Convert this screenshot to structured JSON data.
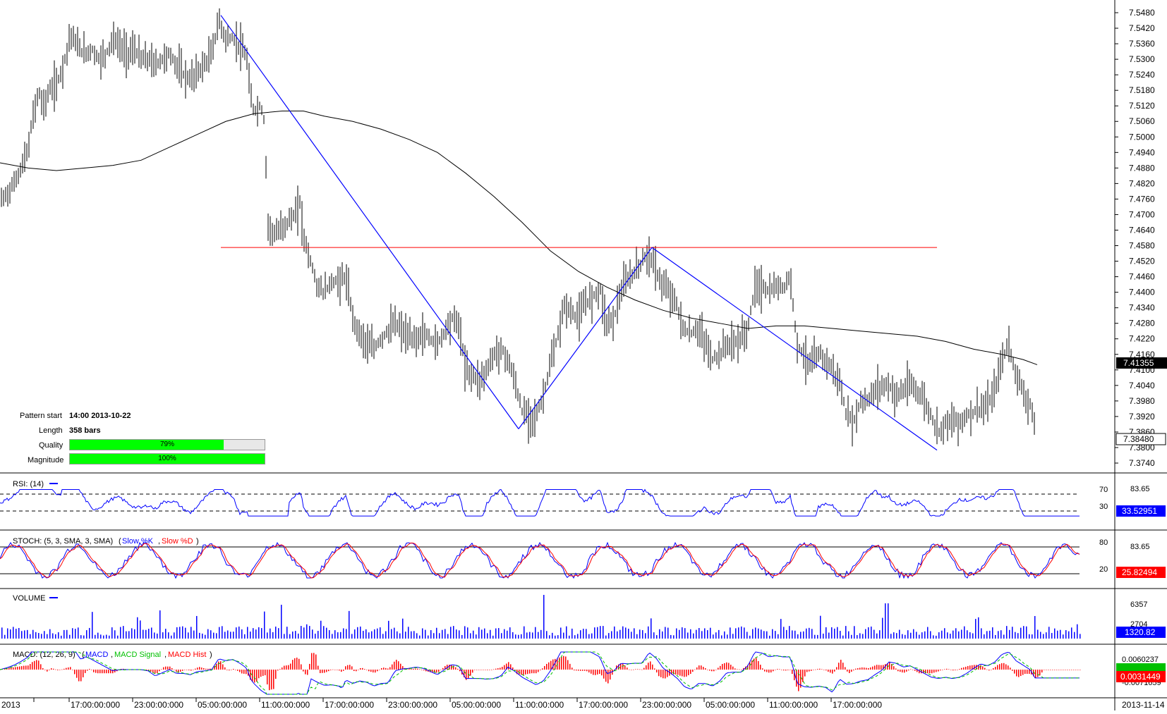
{
  "chart_data": [
    {
      "type": "candlestick",
      "panel": "price",
      "yaxis_ticks": [
        "7.5480",
        "7.5420",
        "7.5360",
        "7.5300",
        "7.5240",
        "7.5180",
        "7.5120",
        "7.5060",
        "7.5000",
        "7.4940",
        "7.4880",
        "7.4820",
        "7.4760",
        "7.4700",
        "7.4640",
        "7.4580",
        "7.4520",
        "7.4460",
        "7.4400",
        "7.4340",
        "7.4280",
        "7.4220",
        "7.4160",
        "7.4100",
        "7.4040",
        "7.3980",
        "7.3920",
        "7.3860",
        "7.3800",
        "7.3740"
      ],
      "ylim": [
        7.372,
        7.55
      ],
      "current_price_label": "7.41355",
      "alt_price_label": "7.38480",
      "close_path": [
        [
          0,
          7.475
        ],
        [
          10,
          7.478
        ],
        [
          20,
          7.482
        ],
        [
          30,
          7.488
        ],
        [
          40,
          7.495
        ],
        [
          45,
          7.505
        ],
        [
          50,
          7.512
        ],
        [
          55,
          7.518
        ],
        [
          60,
          7.512
        ],
        [
          65,
          7.514
        ],
        [
          70,
          7.518
        ],
        [
          80,
          7.52
        ],
        [
          90,
          7.528
        ],
        [
          100,
          7.54
        ],
        [
          110,
          7.535
        ],
        [
          120,
          7.532
        ],
        [
          130,
          7.534
        ],
        [
          140,
          7.53
        ],
        [
          150,
          7.532
        ],
        [
          160,
          7.538
        ],
        [
          170,
          7.535
        ],
        [
          180,
          7.532
        ],
        [
          190,
          7.534
        ],
        [
          200,
          7.53
        ],
        [
          210,
          7.53
        ],
        [
          220,
          7.528
        ],
        [
          230,
          7.53
        ],
        [
          240,
          7.532
        ],
        [
          250,
          7.528
        ],
        [
          260,
          7.524
        ],
        [
          270,
          7.522
        ],
        [
          280,
          7.525
        ],
        [
          290,
          7.528
        ],
        [
          300,
          7.532
        ],
        [
          310,
          7.545
        ],
        [
          320,
          7.538
        ],
        [
          330,
          7.538
        ],
        [
          340,
          7.535
        ],
        [
          350,
          7.53
        ],
        [
          355,
          7.515
        ],
        [
          360,
          7.51
        ],
        [
          370,
          7.512
        ],
        [
          375,
          7.505
        ],
        [
          380,
          7.466
        ],
        [
          390,
          7.462
        ],
        [
          400,
          7.465
        ],
        [
          410,
          7.468
        ],
        [
          420,
          7.47
        ],
        [
          425,
          7.475
        ],
        [
          430,
          7.462
        ],
        [
          440,
          7.452
        ],
        [
          450,
          7.442
        ],
        [
          460,
          7.44
        ],
        [
          470,
          7.444
        ],
        [
          480,
          7.444
        ],
        [
          490,
          7.446
        ],
        [
          500,
          7.43
        ],
        [
          510,
          7.424
        ],
        [
          520,
          7.42
        ],
        [
          530,
          7.418
        ],
        [
          540,
          7.422
        ],
        [
          550,
          7.425
        ],
        [
          560,
          7.428
        ],
        [
          570,
          7.425
        ],
        [
          580,
          7.422
        ],
        [
          590,
          7.422
        ],
        [
          600,
          7.424
        ],
        [
          610,
          7.422
        ],
        [
          620,
          7.42
        ],
        [
          630,
          7.425
        ],
        [
          640,
          7.43
        ],
        [
          650,
          7.428
        ],
        [
          660,
          7.41
        ],
        [
          670,
          7.408
        ],
        [
          680,
          7.406
        ],
        [
          690,
          7.41
        ],
        [
          700,
          7.416
        ],
        [
          710,
          7.418
        ],
        [
          720,
          7.414
        ],
        [
          730,
          7.405
        ],
        [
          740,
          7.394
        ],
        [
          750,
          7.392
        ],
        [
          760,
          7.392
        ],
        [
          770,
          7.4
        ],
        [
          780,
          7.412
        ],
        [
          790,
          7.422
        ],
        [
          800,
          7.435
        ],
        [
          810,
          7.432
        ],
        [
          820,
          7.43
        ],
        [
          830,
          7.436
        ],
        [
          840,
          7.438
        ],
        [
          850,
          7.442
        ],
        [
          860,
          7.428
        ],
        [
          870,
          7.43
        ],
        [
          880,
          7.44
        ],
        [
          890,
          7.445
        ],
        [
          900,
          7.448
        ],
        [
          910,
          7.452
        ],
        [
          920,
          7.455
        ],
        [
          930,
          7.448
        ],
        [
          940,
          7.442
        ],
        [
          950,
          7.44
        ],
        [
          960,
          7.434
        ],
        [
          970,
          7.425
        ],
        [
          980,
          7.424
        ],
        [
          990,
          7.426
        ],
        [
          1000,
          7.42
        ],
        [
          1010,
          7.414
        ],
        [
          1020,
          7.416
        ],
        [
          1030,
          7.42
        ],
        [
          1040,
          7.42
        ],
        [
          1050,
          7.422
        ],
        [
          1060,
          7.426
        ],
        [
          1070,
          7.442
        ],
        [
          1080,
          7.442
        ],
        [
          1090,
          7.44
        ],
        [
          1100,
          7.442
        ],
        [
          1110,
          7.442
        ],
        [
          1120,
          7.446
        ],
        [
          1130,
          7.42
        ],
        [
          1140,
          7.415
        ],
        [
          1150,
          7.412
        ],
        [
          1160,
          7.416
        ],
        [
          1170,
          7.414
        ],
        [
          1180,
          7.41
        ],
        [
          1190,
          7.405
        ],
        [
          1200,
          7.392
        ],
        [
          1210,
          7.39
        ],
        [
          1220,
          7.398
        ],
        [
          1230,
          7.398
        ],
        [
          1240,
          7.402
        ],
        [
          1250,
          7.404
        ],
        [
          1260,
          7.404
        ],
        [
          1270,
          7.4
        ],
        [
          1280,
          7.402
        ],
        [
          1290,
          7.404
        ],
        [
          1300,
          7.402
        ],
        [
          1310,
          7.398
        ],
        [
          1320,
          7.392
        ],
        [
          1330,
          7.386
        ],
        [
          1340,
          7.39
        ],
        [
          1350,
          7.39
        ],
        [
          1360,
          7.39
        ],
        [
          1370,
          7.392
        ],
        [
          1380,
          7.394
        ],
        [
          1390,
          7.395
        ],
        [
          1400,
          7.396
        ],
        [
          1410,
          7.402
        ],
        [
          1420,
          7.414
        ],
        [
          1430,
          7.42
        ],
        [
          1440,
          7.408
        ],
        [
          1450,
          7.402
        ],
        [
          1460,
          7.396
        ],
        [
          1467,
          7.387
        ]
      ],
      "moving_average": [
        [
          0,
          7.49
        ],
        [
          40,
          7.488
        ],
        [
          80,
          7.487
        ],
        [
          120,
          7.488
        ],
        [
          160,
          7.489
        ],
        [
          200,
          7.491
        ],
        [
          240,
          7.496
        ],
        [
          280,
          7.501
        ],
        [
          320,
          7.506
        ],
        [
          360,
          7.509
        ],
        [
          400,
          7.51
        ],
        [
          430,
          7.51
        ],
        [
          460,
          7.508
        ],
        [
          500,
          7.506
        ],
        [
          540,
          7.503
        ],
        [
          580,
          7.499
        ],
        [
          620,
          7.494
        ],
        [
          660,
          7.486
        ],
        [
          700,
          7.477
        ],
        [
          740,
          7.467
        ],
        [
          780,
          7.456
        ],
        [
          820,
          7.448
        ],
        [
          860,
          7.442
        ],
        [
          900,
          7.437
        ],
        [
          940,
          7.433
        ],
        [
          980,
          7.43
        ],
        [
          1020,
          7.428
        ],
        [
          1060,
          7.426
        ],
        [
          1100,
          7.427
        ],
        [
          1140,
          7.427
        ],
        [
          1180,
          7.426
        ],
        [
          1220,
          7.425
        ],
        [
          1260,
          7.424
        ],
        [
          1300,
          7.423
        ],
        [
          1340,
          7.421
        ],
        [
          1380,
          7.418
        ],
        [
          1420,
          7.416
        ],
        [
          1450,
          7.414
        ],
        [
          1470,
          7.412
        ]
      ],
      "pattern_lines": [
        {
          "from": [
            313,
            7.547
          ],
          "to": [
            735,
            7.3872
          ],
          "color": "#0000ff"
        },
        {
          "from": [
            735,
            7.3872
          ],
          "to": [
            924,
            7.4573
          ],
          "color": "#0000ff"
        },
        {
          "from": [
            924,
            7.4573
          ],
          "to": [
            1328,
            7.379
          ],
          "color": "#0000ff"
        }
      ],
      "resistance_line": {
        "from": 313,
        "to": 1328,
        "y": 7.4573,
        "color": "#ff0000"
      },
      "x_axis_labels": [
        "2013",
        "17:00:00:000",
        "23:00:00:000",
        "05:00:00:000",
        "11:00:00:000",
        "17:00:00:000",
        "23:00:00:000",
        "05:00:00:000",
        "11:00:00:000",
        "17:00:00:000",
        "23:00:00:000",
        "05:00:00:000",
        "11:00:00:000",
        "17:00:00:000",
        "2013-11-14"
      ]
    },
    {
      "type": "line",
      "panel": "rsi",
      "title": "RSI: (14)",
      "levels": [
        "70",
        "30"
      ],
      "top_label": "83.65",
      "value_label": "33.52951",
      "color": "#0000ff"
    },
    {
      "type": "line",
      "panel": "stoch",
      "title": "STOCH: (5, 3, SMA, 3, SMA)",
      "series_names": [
        "Slow %K",
        "Slow %D"
      ],
      "levels": [
        "80",
        "20"
      ],
      "top_label": "83.65",
      "value_label": "25.82494",
      "colors": [
        "#0000ff",
        "#ff0000"
      ]
    },
    {
      "type": "bar",
      "panel": "volume",
      "title": "VOLUME",
      "ticks": [
        "6357",
        "2704"
      ],
      "value_label": "1320.82",
      "color": "#0000ff"
    },
    {
      "type": "line",
      "panel": "macd",
      "title": "MACD: (12, 26, 9)",
      "series_names": [
        "MACD",
        "MACD Signal",
        "MACD Hist"
      ],
      "ticks": [
        "0.0060237",
        "-0.0071659"
      ],
      "value_label_green": "",
      "value_label_red": "0.0031449",
      "colors": [
        "#0000ff",
        "#00c000",
        "#ff0000"
      ]
    }
  ],
  "info_panel": {
    "pattern_start_label": "Pattern start",
    "pattern_start_value": "14:00 2013-10-22",
    "length_label": "Length",
    "length_value": "358 bars",
    "quality_label": "Quality",
    "quality_value": "79%",
    "quality_fraction": 0.79,
    "magnitude_label": "Magnitude",
    "magnitude_value": "100%",
    "magnitude_fraction": 1.0
  },
  "colors": {
    "bars": "#000000",
    "ma": "#000000",
    "pattern": "#0000ff",
    "resistance": "#ff0000",
    "bar_fill": "#00ff00",
    "label_bg_black": "#000000",
    "label_bg_blue": "#0000ff",
    "label_bg_red": "#ff0000",
    "label_bg_green": "#00c000"
  }
}
